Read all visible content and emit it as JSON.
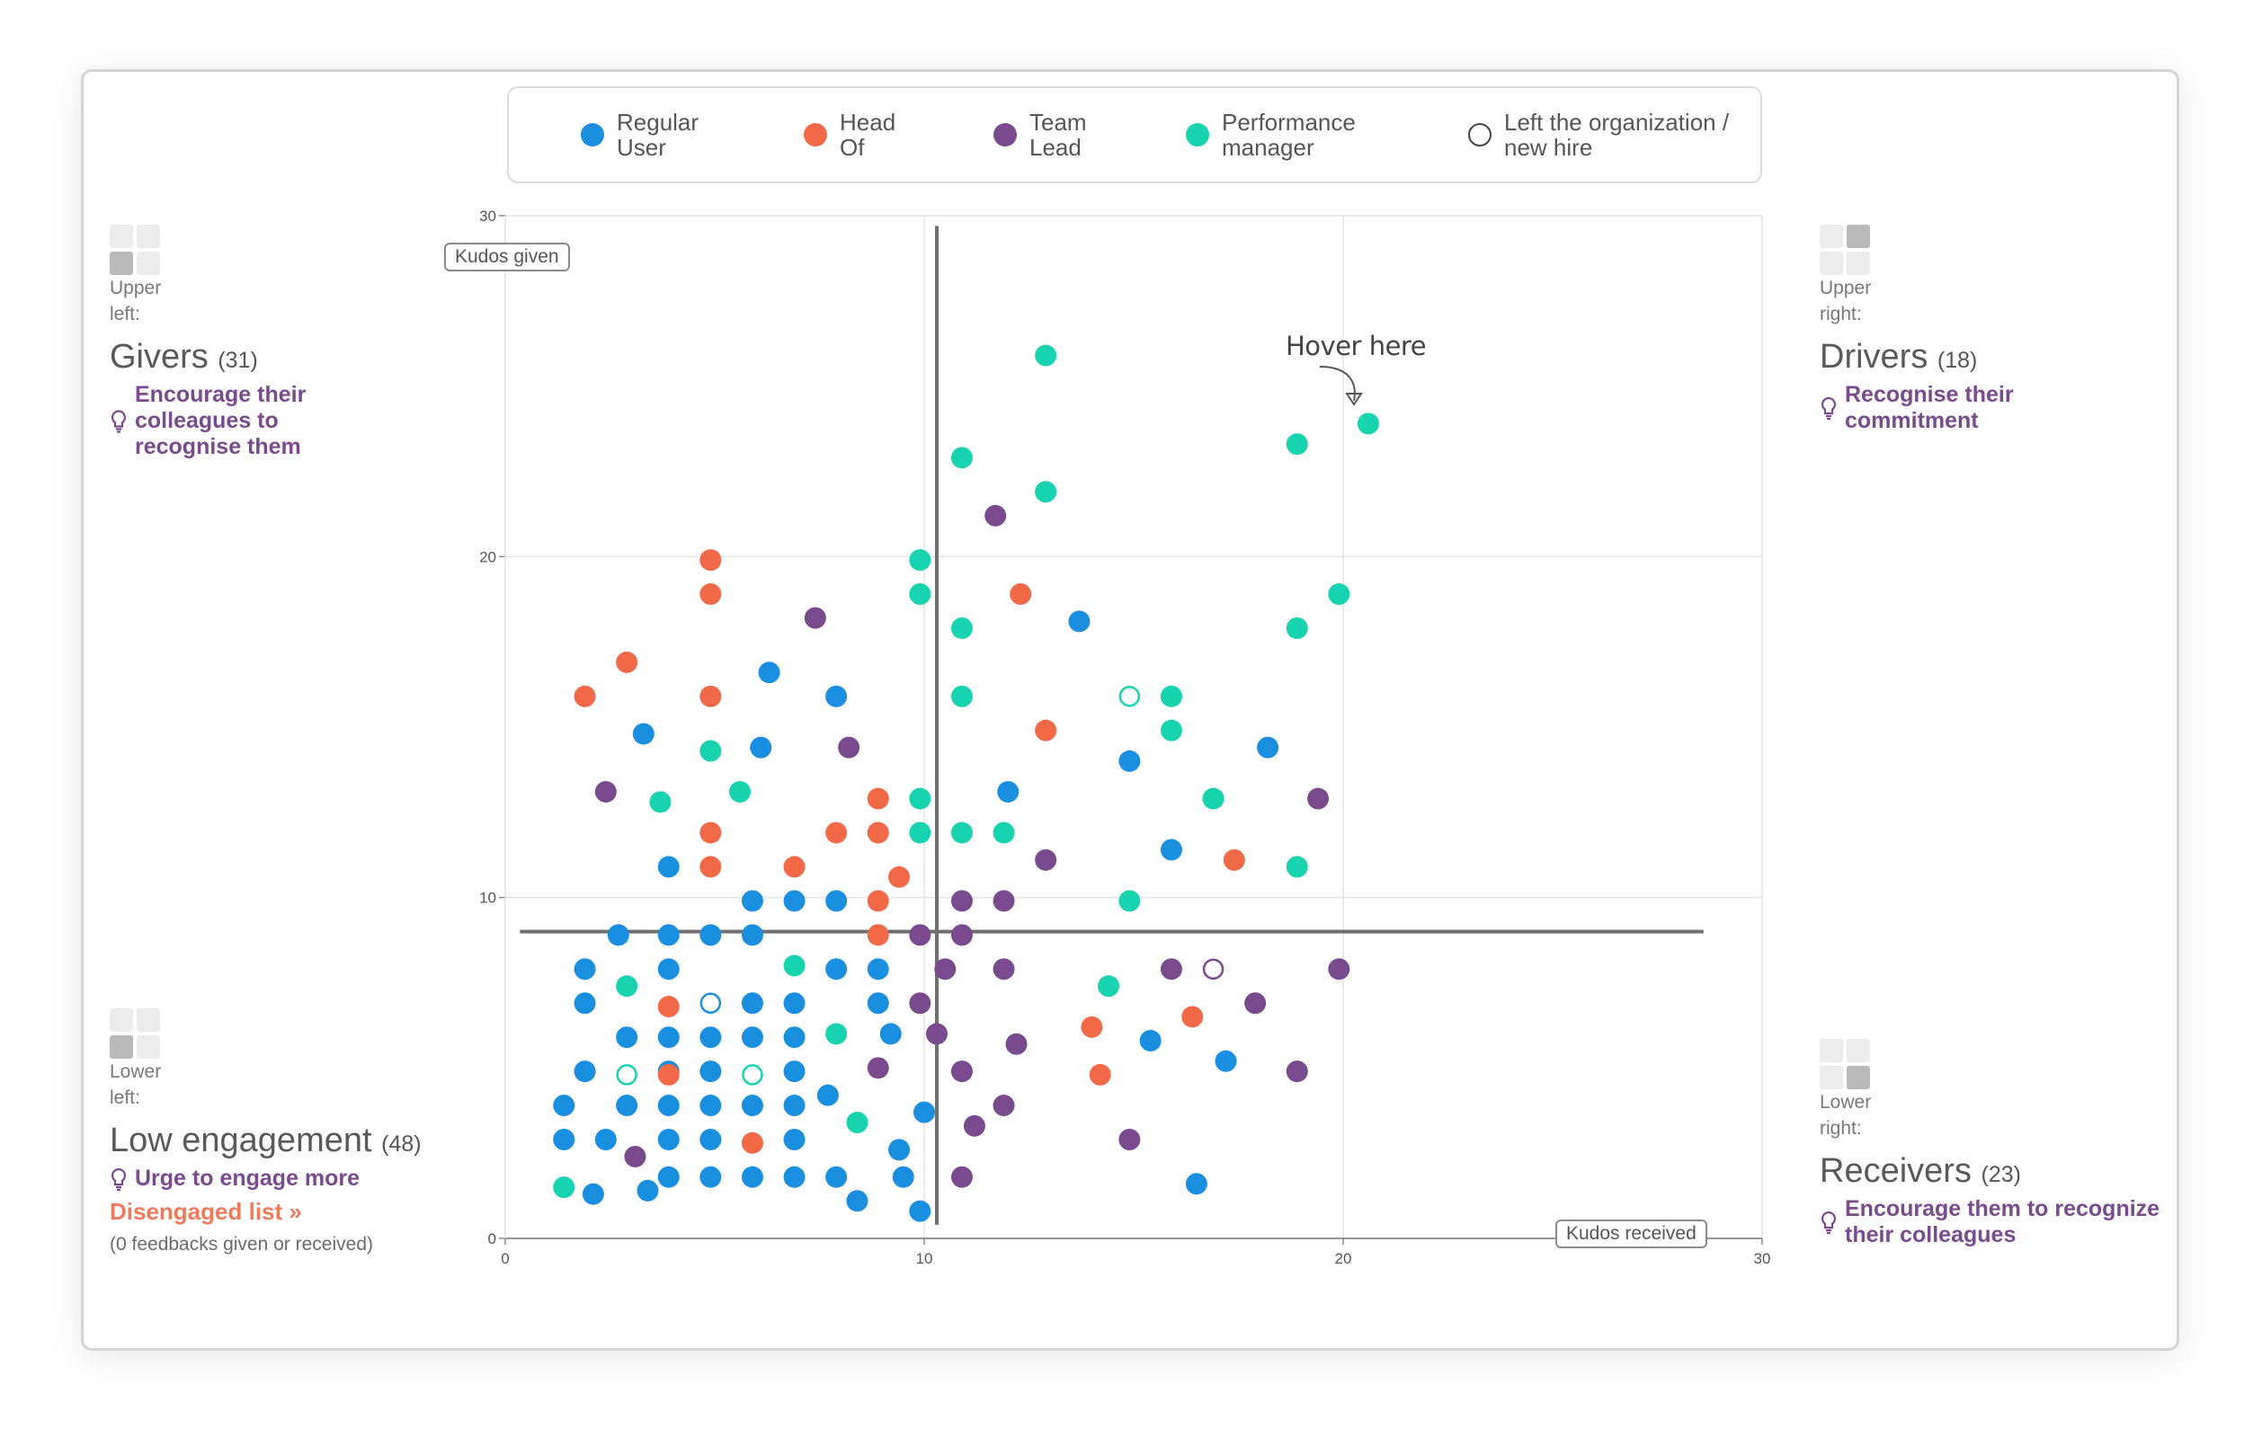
{
  "legend": [
    {
      "label": "Regular User",
      "color": "#1a8fe0",
      "hollow": false
    },
    {
      "label": "Head Of",
      "color": "#f26947",
      "hollow": false
    },
    {
      "label": "Team Lead",
      "color": "#7a4a8e",
      "hollow": false
    },
    {
      "label": "Performance manager",
      "color": "#17d3b0",
      "hollow": false
    },
    {
      "label": "Left the organization / new hire",
      "color": "#444444",
      "hollow": true
    }
  ],
  "quadrants": {
    "upper_left": {
      "position": "Upper left:",
      "title": "Givers",
      "count": "(31)",
      "tip": "Encourage their colleagues to recognise them"
    },
    "upper_right": {
      "position": "Upper right:",
      "title": "Drivers",
      "count": "(18)",
      "tip": "Recognise their commitment"
    },
    "lower_left": {
      "position": "Lower left:",
      "title": "Low engagement",
      "count": "(48)",
      "tip": "Urge to engage more"
    },
    "lower_right": {
      "position": "Lower right:",
      "title": "Receivers",
      "count": "(23)",
      "tip": "Encourage them to recognize their colleagues"
    }
  },
  "disengaged": {
    "link": "Disengaged list",
    "link_icon": "double-chevron-right-icon",
    "note": "(0 feedbacks given or received)"
  },
  "annotation": {
    "text": "Hover here",
    "icon": "curved-arrow-icon"
  },
  "chart_data": {
    "type": "scatter",
    "xlabel": "Kudos received",
    "ylabel": "Kudos given",
    "xlim": [
      0,
      30
    ],
    "ylim": [
      0,
      30
    ],
    "xticks": [
      0,
      10,
      20,
      30
    ],
    "yticks": [
      0,
      10,
      20,
      30
    ],
    "grid": true,
    "divider": {
      "x": 10.3,
      "y": 9
    },
    "colors": {
      "regular": "#1a8fe0",
      "head": "#f26947",
      "lead": "#7a4a8e",
      "perf": "#17d3b0"
    },
    "series": [
      {
        "name": "Regular User",
        "key": "regular",
        "points": [
          [
            1.4,
            3.9
          ],
          [
            1.4,
            2.9
          ],
          [
            1.9,
            7.9
          ],
          [
            1.9,
            6.9
          ],
          [
            1.9,
            4.9
          ],
          [
            2.1,
            1.3
          ],
          [
            2.4,
            2.9
          ],
          [
            2.7,
            8.9
          ],
          [
            2.9,
            5.9
          ],
          [
            2.9,
            3.9
          ],
          [
            3.4,
            1.4
          ],
          [
            3.3,
            14.8
          ],
          [
            3.9,
            10.9
          ],
          [
            3.9,
            8.9
          ],
          [
            3.9,
            7.9
          ],
          [
            3.9,
            5.9
          ],
          [
            3.9,
            4.9
          ],
          [
            3.9,
            3.9
          ],
          [
            3.9,
            2.9
          ],
          [
            3.9,
            1.8
          ],
          [
            4.9,
            8.9
          ],
          [
            4.9,
            5.9
          ],
          [
            4.9,
            4.9
          ],
          [
            4.9,
            3.9
          ],
          [
            4.9,
            2.9
          ],
          [
            4.9,
            1.8
          ],
          [
            5.9,
            9.9
          ],
          [
            5.9,
            8.9
          ],
          [
            5.9,
            6.9
          ],
          [
            5.9,
            5.9
          ],
          [
            5.9,
            3.9
          ],
          [
            5.9,
            1.8
          ],
          [
            6.1,
            14.4
          ],
          [
            6.3,
            16.6
          ],
          [
            6.9,
            9.9
          ],
          [
            6.9,
            6.9
          ],
          [
            6.9,
            5.9
          ],
          [
            6.9,
            4.9
          ],
          [
            6.9,
            3.9
          ],
          [
            6.9,
            2.9
          ],
          [
            6.9,
            1.8
          ],
          [
            7.7,
            4.2
          ],
          [
            7.9,
            9.9
          ],
          [
            7.9,
            7.9
          ],
          [
            7.9,
            15.9
          ],
          [
            7.9,
            1.8
          ],
          [
            8.4,
            1.1
          ],
          [
            8.9,
            7.9
          ],
          [
            8.9,
            6.9
          ],
          [
            9.2,
            6.0
          ],
          [
            9.4,
            2.6
          ],
          [
            9.5,
            1.8
          ],
          [
            9.9,
            0.8
          ],
          [
            10.0,
            3.7
          ],
          [
            12.0,
            13.1
          ],
          [
            13.7,
            18.1
          ],
          [
            14.9,
            14.0
          ],
          [
            15.4,
            5.8
          ],
          [
            15.9,
            11.4
          ],
          [
            17.2,
            5.2
          ],
          [
            18.2,
            14.4
          ],
          [
            16.5,
            1.6
          ]
        ]
      },
      {
        "name": "Head Of",
        "key": "head",
        "points": [
          [
            1.9,
            15.9
          ],
          [
            2.9,
            16.9
          ],
          [
            3.9,
            6.8
          ],
          [
            3.9,
            4.8
          ],
          [
            4.9,
            19.9
          ],
          [
            4.9,
            18.9
          ],
          [
            4.9,
            15.9
          ],
          [
            4.9,
            11.9
          ],
          [
            4.9,
            10.9
          ],
          [
            5.9,
            2.8
          ],
          [
            6.9,
            10.9
          ],
          [
            7.9,
            11.9
          ],
          [
            8.9,
            12.9
          ],
          [
            8.9,
            11.9
          ],
          [
            8.9,
            9.9
          ],
          [
            8.9,
            8.9
          ],
          [
            9.4,
            10.6
          ],
          [
            12.3,
            18.9
          ],
          [
            12.9,
            14.9
          ],
          [
            14.0,
            6.2
          ],
          [
            14.2,
            4.8
          ],
          [
            16.4,
            6.5
          ],
          [
            17.4,
            11.1
          ]
        ]
      },
      {
        "name": "Team Lead",
        "key": "lead",
        "points": [
          [
            2.4,
            13.1
          ],
          [
            3.1,
            2.4
          ],
          [
            7.4,
            18.2
          ],
          [
            8.2,
            14.4
          ],
          [
            8.9,
            5.0
          ],
          [
            9.9,
            8.9
          ],
          [
            9.9,
            6.9
          ],
          [
            10.3,
            6.0
          ],
          [
            10.5,
            7.9
          ],
          [
            10.9,
            9.9
          ],
          [
            10.9,
            8.9
          ],
          [
            10.9,
            4.9
          ],
          [
            10.9,
            1.8
          ],
          [
            11.2,
            3.3
          ],
          [
            11.7,
            21.2
          ],
          [
            11.9,
            9.9
          ],
          [
            11.9,
            7.9
          ],
          [
            11.9,
            3.9
          ],
          [
            12.2,
            5.7
          ],
          [
            12.9,
            11.1
          ],
          [
            14.9,
            2.9
          ],
          [
            15.9,
            7.9
          ],
          [
            17.9,
            6.9
          ],
          [
            18.9,
            4.9
          ],
          [
            19.4,
            12.9
          ],
          [
            19.9,
            7.9
          ]
        ]
      },
      {
        "name": "Performance manager",
        "key": "perf",
        "points": [
          [
            1.4,
            1.5
          ],
          [
            2.9,
            7.4
          ],
          [
            3.7,
            12.8
          ],
          [
            4.9,
            14.3
          ],
          [
            5.6,
            13.1
          ],
          [
            6.9,
            8.0
          ],
          [
            7.9,
            6.0
          ],
          [
            8.4,
            3.4
          ],
          [
            9.9,
            19.9
          ],
          [
            9.9,
            18.9
          ],
          [
            9.9,
            12.9
          ],
          [
            9.9,
            11.9
          ],
          [
            10.9,
            22.9
          ],
          [
            10.9,
            17.9
          ],
          [
            10.9,
            15.9
          ],
          [
            10.9,
            11.9
          ],
          [
            11.9,
            11.9
          ],
          [
            12.9,
            25.9
          ],
          [
            12.9,
            21.9
          ],
          [
            14.9,
            9.9
          ],
          [
            14.4,
            7.4
          ],
          [
            15.9,
            15.9
          ],
          [
            15.9,
            14.9
          ],
          [
            16.9,
            12.9
          ],
          [
            18.9,
            23.3
          ],
          [
            18.9,
            17.9
          ],
          [
            18.9,
            10.9
          ],
          [
            19.9,
            18.9
          ],
          [
            20.6,
            23.9
          ]
        ]
      },
      {
        "name": "Left the organization / new hire",
        "key": "left",
        "points": [
          [
            2.9,
            4.8
          ],
          [
            4.9,
            6.9
          ],
          [
            5.9,
            4.8
          ],
          [
            14.9,
            15.9
          ],
          [
            16.9,
            7.9
          ]
        ]
      }
    ]
  }
}
